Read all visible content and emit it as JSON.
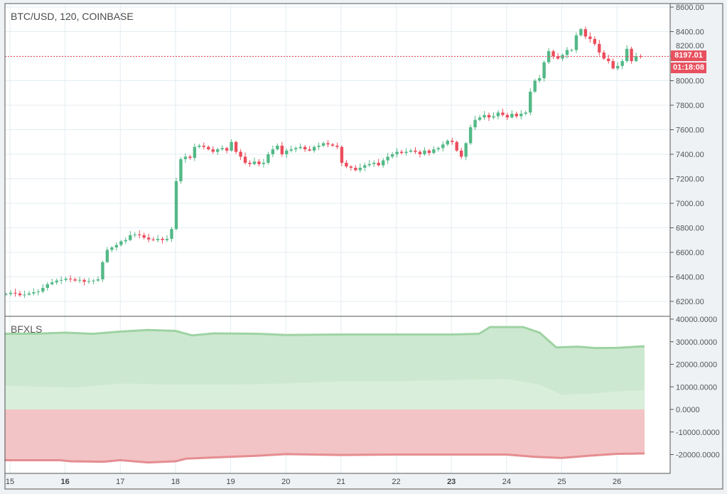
{
  "header": {
    "title": "BTC/USD, 120, COINBASE"
  },
  "indicator": {
    "name": "BFXLS"
  },
  "price_tag": {
    "last_price": "8197.01",
    "countdown": "01:18:08",
    "last_value": 8197.01
  },
  "colors": {
    "up": "#53b987",
    "down": "#eb4d5c",
    "grid": "#e3edf2",
    "long_fill": "#cde8d0",
    "long_inner": "#d9eedb",
    "long_line": "#9ed3a3",
    "short_fill": "#f2c4c5",
    "short_line": "#e58d91"
  },
  "price_axis": {
    "labels": [
      "8600.00",
      "8400.00",
      "8200.00",
      "8000.00",
      "7800.00",
      "7600.00",
      "7400.00",
      "7200.00",
      "7000.00",
      "6800.00",
      "6600.00",
      "6400.00",
      "6200.00"
    ],
    "values": [
      8600,
      8400,
      8200,
      8000,
      7800,
      7600,
      7400,
      7200,
      7000,
      6800,
      6600,
      6400,
      6200
    ]
  },
  "indicator_axis": {
    "labels": [
      "40000.0000",
      "30000.0000",
      "20000.0000",
      "10000.0000",
      "0.0000",
      "-10000.0000",
      "-20000.0000"
    ],
    "values": [
      40000,
      30000,
      20000,
      10000,
      0,
      -10000,
      -20000
    ]
  },
  "time_axis": {
    "labels": [
      "15",
      "16",
      "17",
      "18",
      "19",
      "20",
      "21",
      "22",
      "23",
      "24",
      "25",
      "26"
    ],
    "bold": [
      "16",
      "23"
    ]
  },
  "candles": {
    "start_day": 14.93,
    "per_day": 12,
    "first_open": 6255,
    "closes": [
      6260,
      6270,
      6265,
      6250,
      6255,
      6265,
      6275,
      6280,
      6310,
      6340,
      6355,
      6370,
      6375,
      6385,
      6380,
      6370,
      6375,
      6360,
      6365,
      6370,
      6380,
      6520,
      6620,
      6640,
      6660,
      6690,
      6700,
      6740,
      6745,
      6740,
      6720,
      6705,
      6700,
      6710,
      6700,
      6710,
      6790,
      7180,
      7360,
      7380,
      7370,
      7460,
      7470,
      7460,
      7440,
      7420,
      7440,
      7450,
      7430,
      7500,
      7420,
      7380,
      7330,
      7320,
      7340,
      7320,
      7330,
      7400,
      7440,
      7470,
      7400,
      7430,
      7440,
      7450,
      7460,
      7440,
      7430,
      7460,
      7470,
      7490,
      7480,
      7470,
      7460,
      7330,
      7300,
      7290,
      7270,
      7290,
      7310,
      7320,
      7330,
      7310,
      7350,
      7380,
      7400,
      7420,
      7410,
      7420,
      7430,
      7420,
      7400,
      7430,
      7410,
      7440,
      7450,
      7480,
      7510,
      7500,
      7430,
      7380,
      7490,
      7620,
      7680,
      7700,
      7720,
      7700,
      7710,
      7740,
      7720,
      7700,
      7730,
      7710,
      7730,
      7740,
      7910,
      8000,
      8020,
      8150,
      8240,
      8200,
      8180,
      8210,
      8250,
      8250,
      8370,
      8420,
      8360,
      8340,
      8300,
      8230,
      8180,
      8160,
      8100,
      8120,
      8160,
      8260,
      8160,
      8200,
      8197
    ]
  },
  "bfxls": {
    "longs": [
      [
        14.9,
        33500
      ],
      [
        15.5,
        33600
      ],
      [
        16,
        34000
      ],
      [
        16.5,
        33500
      ],
      [
        17,
        34500
      ],
      [
        17.5,
        35200
      ],
      [
        18,
        34800
      ],
      [
        18.3,
        32800
      ],
      [
        18.7,
        33700
      ],
      [
        19.5,
        33500
      ],
      [
        20,
        33000
      ],
      [
        21,
        33200
      ],
      [
        22,
        33200
      ],
      [
        23,
        33200
      ],
      [
        23.5,
        33500
      ],
      [
        23.7,
        36500
      ],
      [
        24.3,
        36500
      ],
      [
        24.6,
        34000
      ],
      [
        24.9,
        27500
      ],
      [
        25.3,
        27800
      ],
      [
        25.6,
        27200
      ],
      [
        26,
        27300
      ],
      [
        26.5,
        28000
      ]
    ],
    "inner": [
      [
        14.9,
        10500
      ],
      [
        16.2,
        9700
      ],
      [
        17,
        11500
      ],
      [
        18,
        11000
      ],
      [
        19,
        11000
      ],
      [
        20,
        11500
      ],
      [
        21,
        12500
      ],
      [
        22,
        12500
      ],
      [
        23,
        13000
      ],
      [
        24,
        13500
      ],
      [
        24.6,
        11000
      ],
      [
        25,
        6500
      ],
      [
        25.5,
        7000
      ],
      [
        26,
        8000
      ],
      [
        26.5,
        8500
      ]
    ],
    "shorts": [
      [
        14.9,
        -22500
      ],
      [
        15.9,
        -22500
      ],
      [
        16.1,
        -23000
      ],
      [
        16.7,
        -23200
      ],
      [
        17,
        -22500
      ],
      [
        17.5,
        -23500
      ],
      [
        18,
        -23000
      ],
      [
        18.2,
        -21800
      ],
      [
        19,
        -21000
      ],
      [
        19.5,
        -20500
      ],
      [
        20,
        -19800
      ],
      [
        21,
        -20200
      ],
      [
        22,
        -20000
      ],
      [
        23,
        -20000
      ],
      [
        24,
        -20000
      ],
      [
        24.5,
        -21000
      ],
      [
        25,
        -21500
      ],
      [
        25.5,
        -20500
      ],
      [
        26,
        -19700
      ],
      [
        26.5,
        -19500
      ]
    ]
  }
}
